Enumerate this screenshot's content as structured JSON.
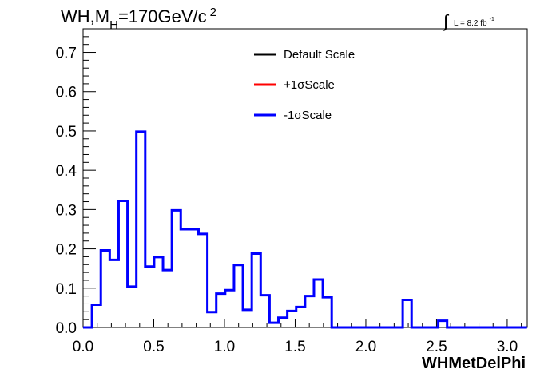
{
  "chart_data": {
    "type": "line",
    "title_parts": {
      "prefix": "WH,M",
      "subscript": "H",
      "mid": "=170GeV/c",
      "superscript": "2"
    },
    "lumi": {
      "symbol": "∫",
      "text": "L = 8.2 fb",
      "exponent": "-1"
    },
    "xlabel": "WHMetDelPhi",
    "ylabel": "",
    "xlim": [
      0,
      3.1416
    ],
    "ylim": [
      0,
      0.76
    ],
    "x_ticks": [
      "0.0",
      "0.5",
      "1.0",
      "1.5",
      "2.0",
      "2.5",
      "3.0"
    ],
    "y_ticks": [
      "0.0",
      "0.1",
      "0.2",
      "0.3",
      "0.4",
      "0.5",
      "0.6",
      "0.7"
    ],
    "x_tick_values": [
      0,
      0.5,
      1.0,
      1.5,
      2.0,
      2.5,
      3.0
    ],
    "y_tick_values": [
      0,
      0.1,
      0.2,
      0.3,
      0.4,
      0.5,
      0.6,
      0.7
    ],
    "bin_width": 0.0628,
    "legend": [
      {
        "label": "Default Scale",
        "color": "#000000"
      },
      {
        "label": "+1σScale",
        "color": "#ff0000"
      },
      {
        "label": "-1σScale",
        "color": "#0000ff"
      }
    ],
    "series": [
      {
        "name": "-1σScale",
        "color": "#0000ff",
        "values": [
          0.0,
          0.058,
          0.196,
          0.172,
          0.322,
          0.104,
          0.498,
          0.155,
          0.179,
          0.146,
          0.298,
          0.25,
          0.25,
          0.238,
          0.039,
          0.086,
          0.095,
          0.159,
          0.045,
          0.188,
          0.082,
          0.012,
          0.025,
          0.042,
          0.052,
          0.08,
          0.122,
          0.077,
          0.0,
          0.0,
          0.0,
          0.0,
          0.0,
          0.0,
          0.0,
          0.0,
          0.07,
          0.0,
          0.0,
          0.0,
          0.017,
          0.0,
          0.0,
          0.0,
          0.0,
          0.0,
          0.0,
          0.0,
          0.0,
          0.0
        ]
      }
    ]
  }
}
